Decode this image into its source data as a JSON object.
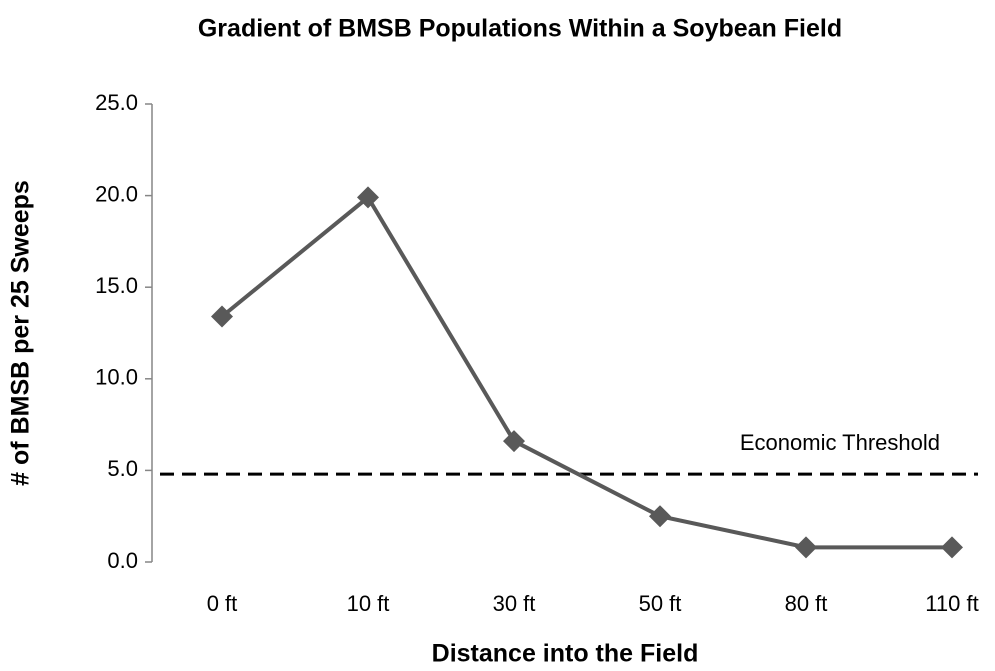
{
  "chart_data": {
    "type": "line",
    "title": "Gradient of BMSB Populations Within a Soybean Field",
    "x_label": "Distance into the Field",
    "y_label": "# of BMSB per 25 Sweeps",
    "categories": [
      "0 ft",
      "10 ft",
      "30 ft",
      "50 ft",
      "80 ft",
      "110 ft"
    ],
    "series": [
      {
        "color": "#595959",
        "values": [
          13.4,
          19.9,
          6.6,
          2.5,
          0.8,
          0.8
        ]
      }
    ],
    "threshold": {
      "label": "Economic Threshold",
      "value": 4.8
    },
    "ylim": [
      0,
      25
    ],
    "yticks": [
      {
        "value": 0,
        "label": "0.0"
      },
      {
        "value": 5,
        "label": "5.0"
      },
      {
        "value": 10,
        "label": "10.0"
      },
      {
        "value": 15,
        "label": "15.0"
      },
      {
        "value": 20,
        "label": "20.0"
      },
      {
        "value": 25,
        "label": "25.0"
      }
    ]
  }
}
